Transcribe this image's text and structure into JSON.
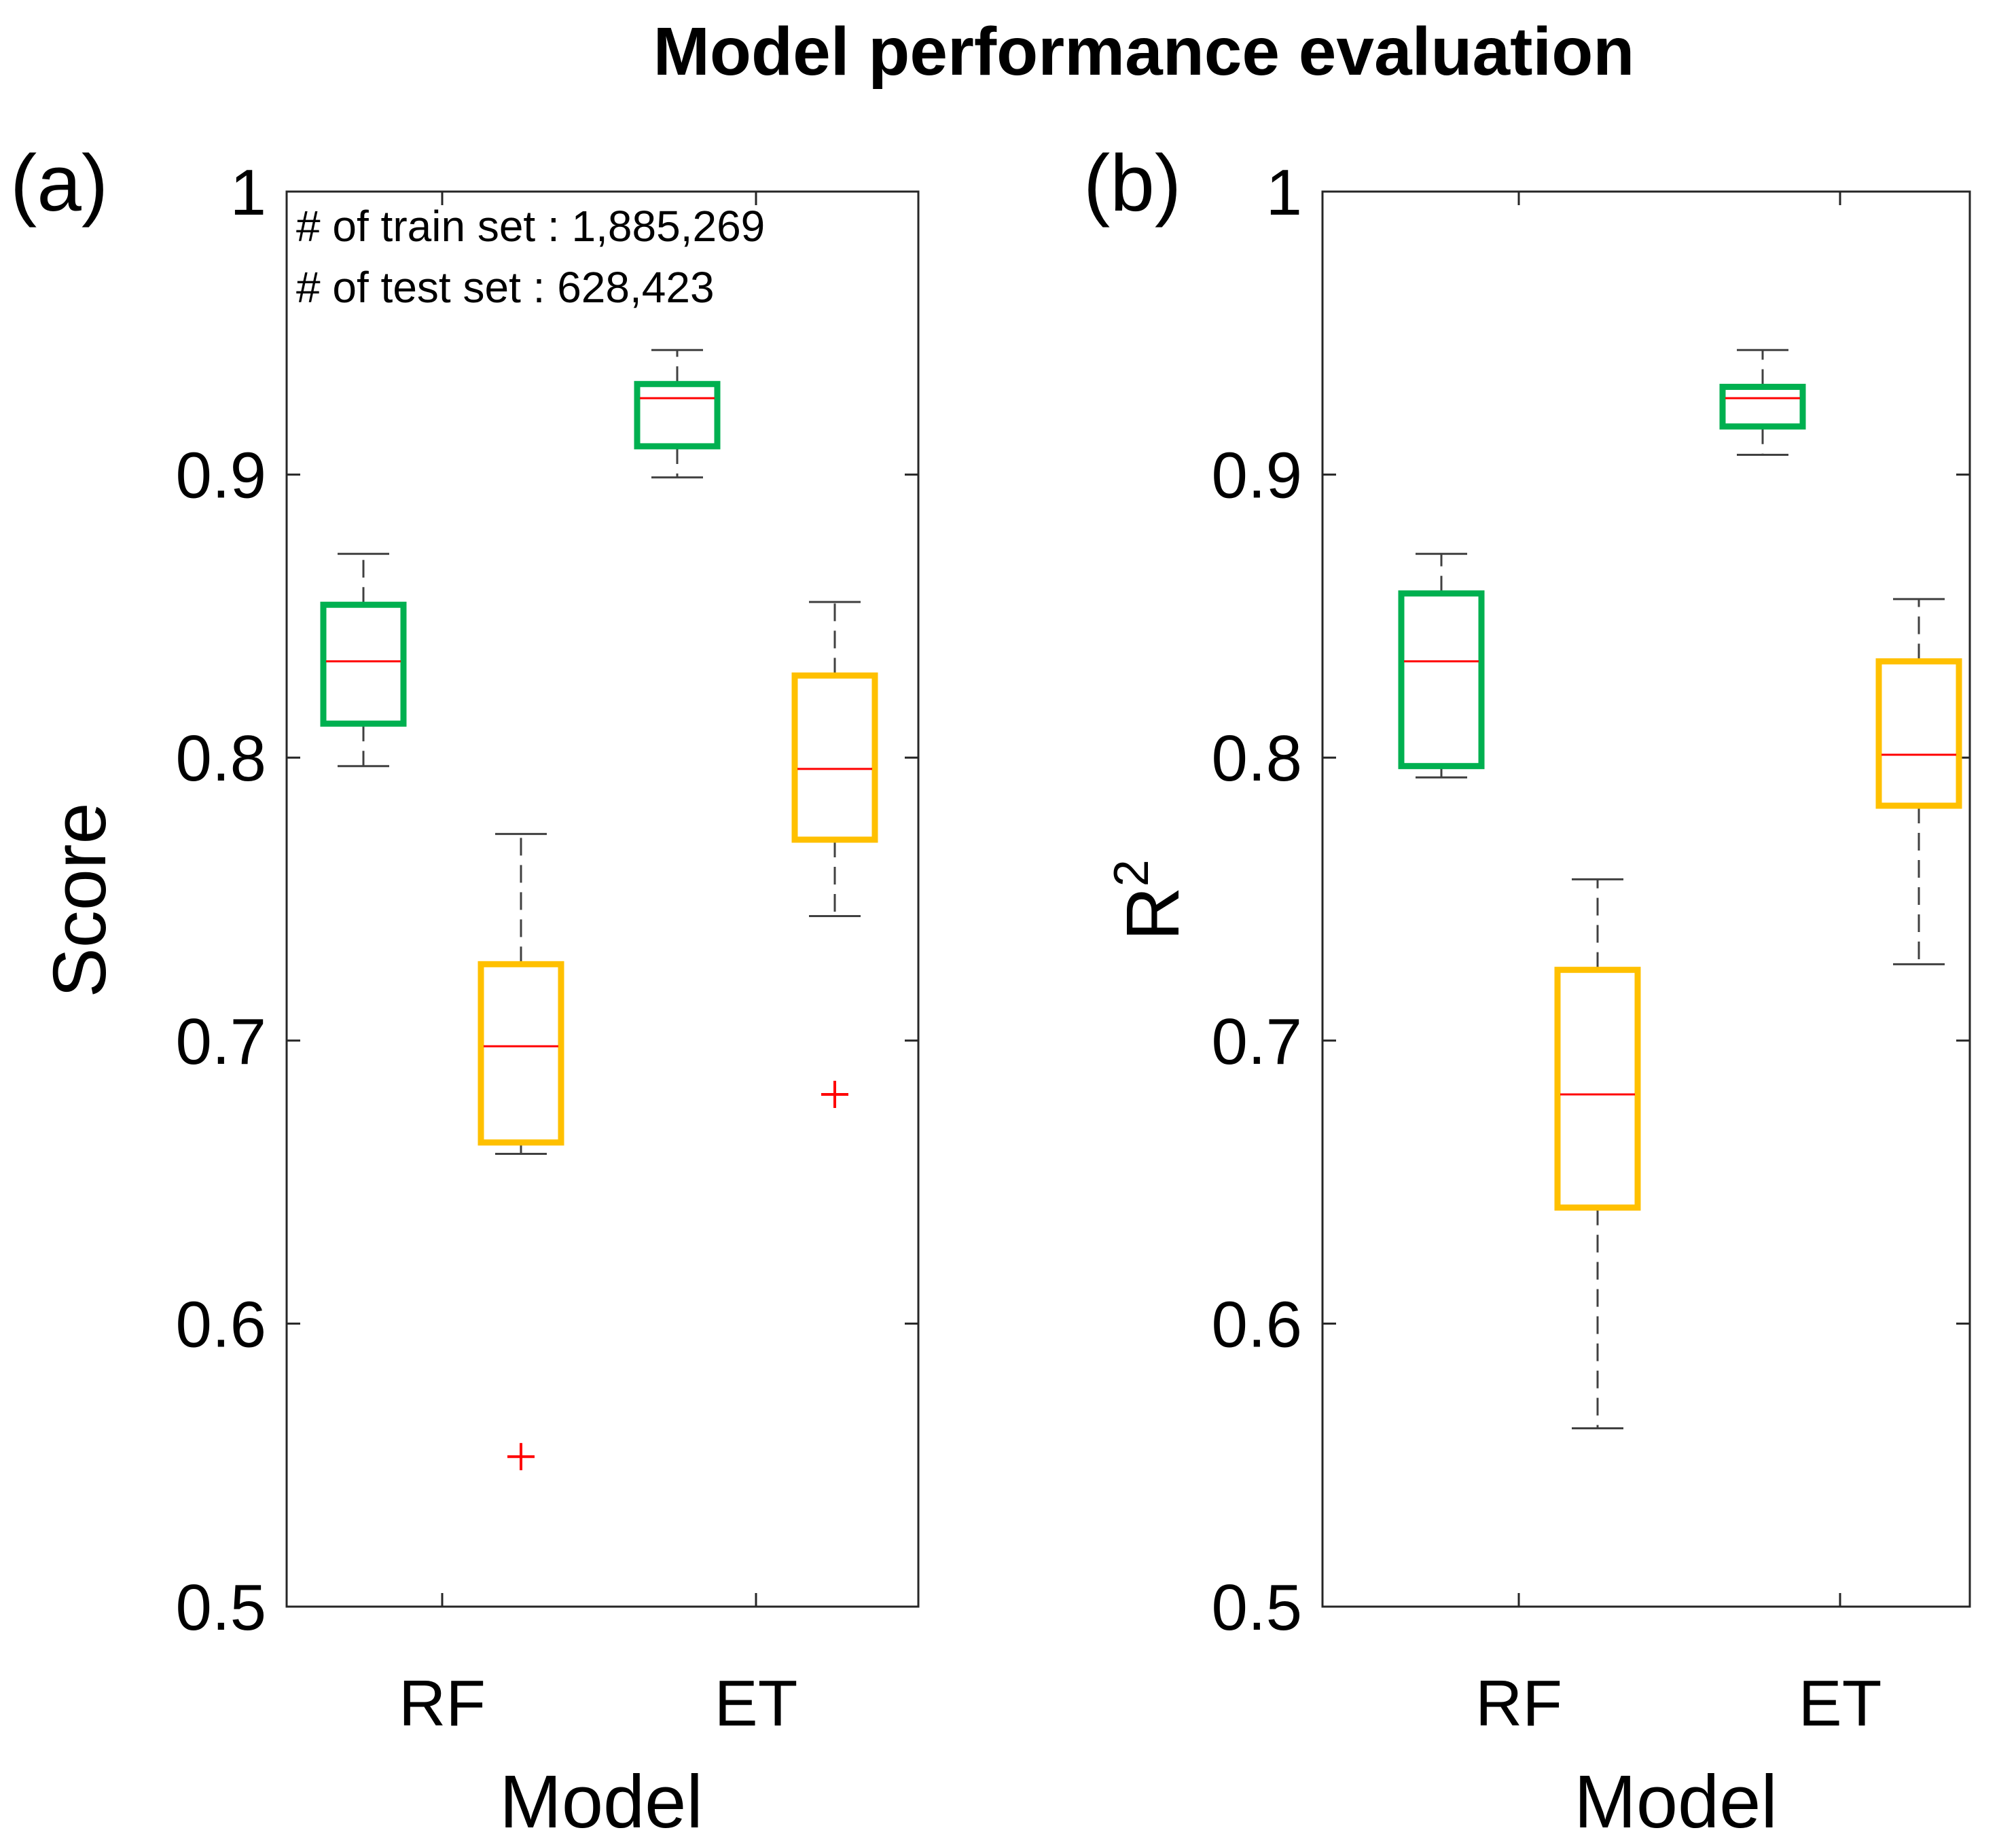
{
  "chart_data": [
    {
      "type": "box",
      "panel_label": "(a)",
      "xlabel": "Model",
      "ylabel": "Score",
      "ylim": [
        0.5,
        1.0
      ],
      "yticks": [
        "0.5",
        "0.6",
        "0.7",
        "0.8",
        "0.9",
        "1"
      ],
      "categories": [
        "RF",
        "ET"
      ],
      "annotations": [
        "# of train set : 1,885,269",
        "# of test set : 628,423"
      ],
      "boxes": [
        {
          "category": "RF",
          "color": "#00b050",
          "whisker_low": 0.797,
          "q1": 0.812,
          "median": 0.834,
          "q3": 0.854,
          "whisker_high": 0.872,
          "outliers": []
        },
        {
          "category": "RF",
          "color": "#ffc000",
          "whisker_low": 0.66,
          "q1": 0.664,
          "median": 0.698,
          "q3": 0.727,
          "whisker_high": 0.773,
          "outliers": [
            0.553
          ]
        },
        {
          "category": "ET",
          "color": "#00b050",
          "whisker_low": 0.899,
          "q1": 0.91,
          "median": 0.927,
          "q3": 0.932,
          "whisker_high": 0.944,
          "outliers": []
        },
        {
          "category": "ET",
          "color": "#ffc000",
          "whisker_low": 0.744,
          "q1": 0.771,
          "median": 0.796,
          "q3": 0.829,
          "whisker_high": 0.855,
          "outliers": [
            0.681
          ]
        }
      ]
    },
    {
      "type": "box",
      "panel_label": "(b)",
      "xlabel": "Model",
      "ylabel": "R",
      "ylabel_sup": "2",
      "ylim": [
        0.5,
        1.0
      ],
      "yticks": [
        "0.5",
        "0.6",
        "0.7",
        "0.8",
        "0.9",
        "1"
      ],
      "categories": [
        "RF",
        "ET"
      ],
      "boxes": [
        {
          "category": "RF",
          "color": "#00b050",
          "whisker_low": 0.793,
          "q1": 0.797,
          "median": 0.834,
          "q3": 0.858,
          "whisker_high": 0.872,
          "outliers": []
        },
        {
          "category": "RF",
          "color": "#ffc000",
          "whisker_low": 0.563,
          "q1": 0.641,
          "median": 0.681,
          "q3": 0.725,
          "whisker_high": 0.757,
          "outliers": []
        },
        {
          "category": "ET",
          "color": "#00b050",
          "whisker_low": 0.907,
          "q1": 0.917,
          "median": 0.927,
          "q3": 0.931,
          "whisker_high": 0.944,
          "outliers": []
        },
        {
          "category": "ET",
          "color": "#ffc000",
          "whisker_low": 0.727,
          "q1": 0.783,
          "median": 0.801,
          "q3": 0.834,
          "whisker_high": 0.856,
          "outliers": []
        }
      ]
    }
  ],
  "title": "Model performance evaluation",
  "colors": {
    "green": "#00b050",
    "yellow": "#ffc000",
    "median": "#ff0000",
    "whisker": "#404040"
  }
}
